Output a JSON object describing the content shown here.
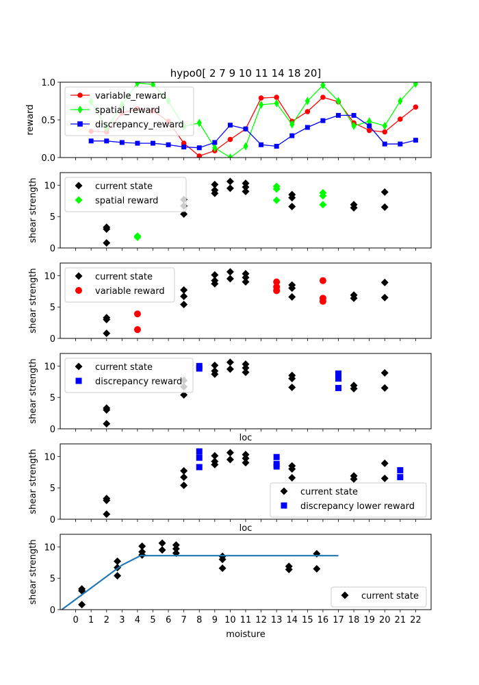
{
  "title": "hypo0[ 2  7  9 10 11 14 18 20]",
  "colors": {
    "variable_reward": "#ff0000",
    "spatial_reward": "#00ff00",
    "discrepancy_reward": "#0000ff",
    "current_state": "#000000",
    "fit_line": "#1f77b4"
  },
  "chart_data": [
    {
      "type": "line",
      "title": "hypo0[ 2  7  9 10 11 14 18 20]",
      "ylabel": "reward",
      "xlabel": "",
      "xlim": [
        -1,
        23
      ],
      "ylim": [
        0,
        1
      ],
      "yticks": [
        0.0,
        0.5,
        1.0
      ],
      "ytick_labels": [
        "0.0",
        "0.5",
        "1.0"
      ],
      "legend": "top-left",
      "series": [
        {
          "name": "variable_reward",
          "marker": "circle",
          "x": [
            1,
            2,
            3,
            4,
            5,
            6,
            7,
            8,
            9,
            10,
            11,
            12,
            13,
            14,
            15,
            16,
            17,
            18,
            19,
            20,
            21,
            22
          ],
          "values": [
            0.35,
            0.34,
            0.59,
            0.65,
            0.62,
            0.48,
            0.19,
            0.02,
            0.09,
            0.24,
            0.38,
            0.79,
            0.8,
            0.48,
            0.61,
            0.8,
            0.74,
            0.46,
            0.36,
            0.34,
            0.51,
            0.67
          ]
        },
        {
          "name": "spatial_reward",
          "marker": "thin_diamond",
          "x": [
            1,
            2,
            3,
            4,
            5,
            6,
            7,
            8,
            9,
            10,
            11,
            12,
            13,
            14,
            15,
            16,
            17,
            18,
            19,
            20,
            21,
            22
          ],
          "values": [
            0.74,
            0.39,
            0.7,
            0.99,
            0.97,
            0.75,
            0.41,
            0.46,
            0.13,
            0.0,
            0.15,
            0.7,
            0.72,
            0.44,
            0.75,
            0.96,
            0.75,
            0.42,
            0.48,
            0.42,
            0.75,
            0.98
          ]
        },
        {
          "name": "discrepancy_reward",
          "marker": "square",
          "x": [
            1,
            2,
            3,
            4,
            5,
            6,
            7,
            8,
            9,
            10,
            11,
            12,
            13,
            14,
            15,
            16,
            17,
            18,
            19,
            20,
            21,
            22
          ],
          "values": [
            0.22,
            0.22,
            0.2,
            0.19,
            0.19,
            0.17,
            0.14,
            0.13,
            0.2,
            0.43,
            0.38,
            0.17,
            0.15,
            0.29,
            0.4,
            0.49,
            0.56,
            0.56,
            0.42,
            0.18,
            0.18,
            0.23
          ]
        }
      ]
    },
    {
      "type": "scatter",
      "ylabel": "shear strength",
      "xlim": [
        -1,
        23
      ],
      "ylim": [
        0,
        12
      ],
      "yticks": [
        0,
        5,
        10
      ],
      "legend": "top-left",
      "series": [
        {
          "name": "current state",
          "marker": "diamond",
          "x": [
            2,
            2,
            2,
            7,
            7,
            7,
            9,
            9,
            9,
            10,
            10,
            11,
            11,
            11,
            14,
            14,
            14,
            18,
            18,
            20,
            20
          ],
          "values": [
            3.3,
            3.0,
            0.8,
            7.7,
            6.7,
            5.4,
            10.1,
            9.2,
            8.7,
            10.6,
            9.5,
            10.3,
            9.7,
            9.0,
            8.5,
            8.0,
            6.6,
            6.9,
            6.4,
            8.9,
            6.5
          ]
        },
        {
          "name": "spatial reward",
          "marker": "diamond",
          "x": [
            4,
            4,
            13,
            13,
            13,
            16,
            16,
            16
          ],
          "values": [
            1.9,
            1.7,
            9.8,
            9.4,
            7.6,
            8.8,
            8.3,
            6.9
          ]
        }
      ]
    },
    {
      "type": "scatter",
      "ylabel": "shear strength",
      "xlim": [
        -1,
        23
      ],
      "ylim": [
        0,
        12
      ],
      "yticks": [
        0,
        5,
        10
      ],
      "legend": "top-left",
      "series": [
        {
          "name": "current state",
          "marker": "diamond",
          "x": [
            2,
            2,
            2,
            7,
            7,
            7,
            9,
            9,
            9,
            10,
            10,
            11,
            11,
            11,
            14,
            14,
            14,
            18,
            18,
            20,
            20
          ],
          "values": [
            3.3,
            3.0,
            0.8,
            7.7,
            6.7,
            5.4,
            10.1,
            9.2,
            8.7,
            10.6,
            9.5,
            10.3,
            9.7,
            9.0,
            8.5,
            8.0,
            6.6,
            6.9,
            6.4,
            8.9,
            6.5
          ]
        },
        {
          "name": "variable reward",
          "marker": "circle",
          "x": [
            4,
            4,
            13,
            13,
            13,
            16,
            16,
            16
          ],
          "values": [
            3.9,
            1.4,
            9.0,
            8.2,
            7.6,
            9.2,
            6.4,
            5.9
          ]
        }
      ]
    },
    {
      "type": "scatter",
      "ylabel": "shear strength",
      "xlabel": "loc",
      "xlim": [
        -1,
        23
      ],
      "ylim": [
        0,
        12
      ],
      "yticks": [
        0,
        5,
        10
      ],
      "legend": "top-left",
      "series": [
        {
          "name": "current state",
          "marker": "diamond",
          "x": [
            2,
            2,
            2,
            7,
            7,
            7,
            9,
            9,
            9,
            10,
            10,
            11,
            11,
            11,
            14,
            14,
            14,
            18,
            18,
            20,
            20
          ],
          "values": [
            3.3,
            3.0,
            0.8,
            7.7,
            6.7,
            5.4,
            10.1,
            9.2,
            8.7,
            10.6,
            9.5,
            10.3,
            9.7,
            9.0,
            8.5,
            8.0,
            6.6,
            6.9,
            6.4,
            8.9,
            6.5
          ]
        },
        {
          "name": "discrepancy reward",
          "marker": "square",
          "x": [
            8,
            8,
            17,
            17,
            17
          ],
          "values": [
            10.0,
            9.6,
            8.8,
            8.0,
            6.5
          ]
        }
      ]
    },
    {
      "type": "scatter",
      "ylabel": "shear strength",
      "xlabel": "loc",
      "xlim": [
        -1,
        23
      ],
      "ylim": [
        0,
        12
      ],
      "yticks": [
        0,
        5,
        10
      ],
      "legend": "bottom-right",
      "series": [
        {
          "name": "current state",
          "marker": "diamond",
          "x": [
            2,
            2,
            2,
            7,
            7,
            7,
            9,
            9,
            9,
            10,
            10,
            11,
            11,
            11,
            14,
            14,
            14,
            18,
            18,
            20,
            20
          ],
          "values": [
            3.3,
            3.0,
            0.8,
            7.7,
            6.7,
            5.4,
            10.1,
            9.2,
            8.7,
            10.6,
            9.5,
            10.3,
            9.7,
            9.0,
            8.5,
            8.0,
            6.6,
            6.9,
            6.4,
            8.9,
            6.5
          ]
        },
        {
          "name": "discrepancy lower reward",
          "marker": "square",
          "x": [
            8,
            8,
            8,
            13,
            13,
            13,
            21,
            21
          ],
          "values": [
            10.8,
            9.8,
            8.3,
            9.9,
            8.8,
            8.4,
            7.8,
            6.7
          ]
        }
      ]
    },
    {
      "type": "scatter",
      "ylabel": "shear strength",
      "xlabel": "moisture",
      "xlim": [
        -1,
        23
      ],
      "ylim": [
        0,
        12
      ],
      "yticks": [
        0,
        5,
        10
      ],
      "xticks": [
        0,
        1,
        2,
        3,
        4,
        5,
        6,
        7,
        8,
        9,
        10,
        11,
        12,
        13,
        14,
        15,
        16,
        17,
        18,
        19,
        20,
        21,
        22
      ],
      "legend": "bottom-right",
      "series": [
        {
          "name": "current state",
          "marker": "diamond",
          "x": [
            0.4,
            0.4,
            0.4,
            2.7,
            2.7,
            2.7,
            4.3,
            4.3,
            4.3,
            5.6,
            5.6,
            6.5,
            6.5,
            6.5,
            9.5,
            9.5,
            9.5,
            13.8,
            13.8,
            15.6,
            15.6
          ],
          "values": [
            3.3,
            3.0,
            0.8,
            7.7,
            6.7,
            5.4,
            10.1,
            9.2,
            8.7,
            10.6,
            9.5,
            10.3,
            9.7,
            9.0,
            8.5,
            8.0,
            6.6,
            6.9,
            6.4,
            8.9,
            6.5
          ]
        },
        {
          "type": "line",
          "x": [
            -0.9,
            3.0,
            4.2,
            17.0
          ],
          "values": [
            0.0,
            7.1,
            8.6,
            8.6
          ]
        }
      ]
    }
  ]
}
